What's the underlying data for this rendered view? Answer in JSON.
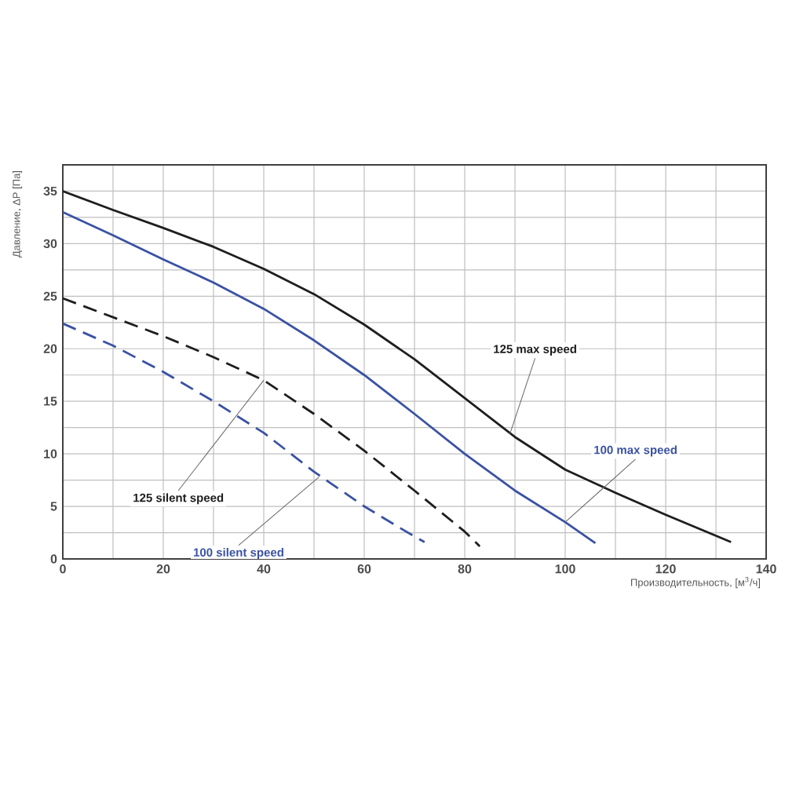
{
  "chart_data": {
    "type": "line",
    "xlabel": "Производительность, [м$^{3}$/ч]",
    "ylabel": "Давление, ΔP [Па]",
    "xlim": [
      0,
      140
    ],
    "ylim": [
      0,
      37.5
    ],
    "xticks": [
      0,
      20,
      40,
      60,
      80,
      100,
      120,
      140
    ],
    "yticks": [
      0,
      5,
      10,
      15,
      20,
      25,
      30,
      35
    ],
    "grid": true,
    "marker": "none",
    "series": [
      {
        "color": "#1e1e1e",
        "line_style": "solid",
        "x": [
          0,
          10,
          20,
          30,
          40,
          50,
          60,
          70,
          80,
          90,
          100,
          110,
          120,
          133
        ],
        "values": [
          35,
          33.2,
          31.5,
          29.7,
          27.6,
          25.2,
          22.3,
          19,
          15.3,
          11.6,
          8.5,
          6.3,
          4.2,
          1.6
        ]
      },
      {
        "color": "#3a52a3",
        "line_style": "solid",
        "x": [
          0,
          10,
          20,
          30,
          40,
          50,
          60,
          70,
          80,
          90,
          100,
          106
        ],
        "values": [
          33,
          30.8,
          28.5,
          26.3,
          23.8,
          20.8,
          17.5,
          13.8,
          10,
          6.5,
          3.5,
          1.5
        ]
      },
      {
        "color": "#1e1e1e",
        "line_style": "dashed",
        "x": [
          0,
          10,
          20,
          30,
          40,
          50,
          60,
          70,
          80,
          83
        ],
        "values": [
          24.8,
          23,
          21.2,
          19.2,
          17,
          13.8,
          10.3,
          6.5,
          2.6,
          1.2
        ]
      },
      {
        "color": "#3a52a3",
        "line_style": "dashed",
        "x": [
          0,
          10,
          20,
          30,
          40,
          50,
          60,
          68,
          72
        ],
        "values": [
          22.4,
          20.3,
          17.8,
          15,
          12,
          8.3,
          5,
          2.7,
          1.6
        ]
      }
    ],
    "annotations": [
      {
        "text": "125 max speed",
        "x": 89,
        "y": 11.9
      },
      {
        "text": "100 max speed",
        "x": 100,
        "y": 3.5
      },
      {
        "text": "125 silent speed",
        "x": 40,
        "y": 17
      },
      {
        "text": "100 silent speed",
        "x": 51,
        "y": 7.8
      }
    ]
  }
}
